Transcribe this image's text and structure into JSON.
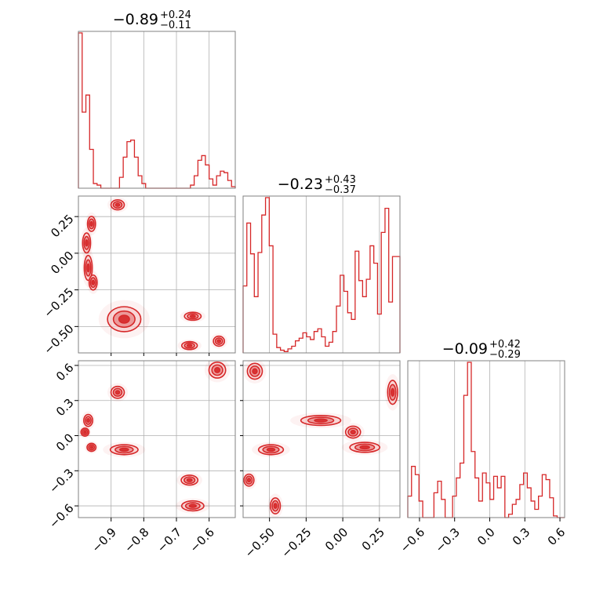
{
  "colors": {
    "accent": "#d62728",
    "frame": "#808080",
    "grid": "#b0b0b0"
  },
  "chart_data": {
    "type": "corner",
    "parameters": [
      {
        "range": [
          -1.0,
          -0.52
        ],
        "ticks": [
          -0.9,
          -0.8,
          -0.7,
          -0.6
        ],
        "tick_labels": [
          "−0.9",
          "−0.8",
          "−0.7",
          "−0.6"
        ],
        "title": {
          "median": "−0.89",
          "plus": "+0.24",
          "minus": "−0.11"
        }
      },
      {
        "range": [
          -0.68,
          0.39
        ],
        "ticks": [
          -0.5,
          -0.25,
          0.0,
          0.25
        ],
        "tick_labels": [
          "−0.50",
          "−0.25",
          "0.00",
          "0.25"
        ],
        "title": {
          "median": "−0.23",
          "plus": "+0.43",
          "minus": "−0.37"
        }
      },
      {
        "range": [
          -0.7,
          0.64
        ],
        "ticks": [
          -0.6,
          -0.3,
          0.0,
          0.3,
          0.6
        ],
        "tick_labels": [
          "−0.6",
          "−0.3",
          "0.0",
          "0.3",
          "0.6"
        ],
        "title": {
          "median": "−0.09",
          "plus": "+0.42",
          "minus": "−0.29"
        }
      }
    ],
    "histograms": [
      [
        100,
        49,
        60,
        25,
        3,
        2,
        0,
        0,
        0,
        0,
        0,
        7,
        20,
        30,
        31,
        20,
        8,
        3,
        0,
        0,
        0,
        0,
        0,
        0,
        0,
        0,
        0,
        0,
        0,
        0,
        2,
        8,
        18,
        21,
        15,
        6,
        2,
        8,
        11,
        10,
        5,
        1
      ],
      [
        50,
        97,
        74,
        42,
        75,
        103,
        116,
        80,
        14,
        4,
        2,
        1,
        3,
        5,
        9,
        11,
        15,
        12,
        10,
        16,
        18,
        12,
        5,
        8,
        16,
        35,
        58,
        46,
        30,
        25,
        76,
        54,
        42,
        55,
        80,
        67,
        29,
        90,
        108,
        38,
        72,
        72
      ],
      [
        13,
        31,
        26,
        10,
        0,
        0,
        0,
        15,
        22,
        11,
        0,
        0,
        13,
        24,
        33,
        74,
        94,
        40,
        24,
        10,
        27,
        21,
        11,
        25,
        18,
        25,
        0,
        2,
        8,
        11,
        20,
        27,
        18,
        10,
        5,
        13,
        26,
        23,
        12,
        1,
        0,
        0
      ]
    ],
    "blobs_2d": [
      [
        {
          "x": -0.88,
          "y": 0.33,
          "sx": 0.012,
          "sy": 0.02,
          "w": 1.0
        },
        {
          "x": -0.96,
          "y": 0.2,
          "sx": 0.007,
          "sy": 0.03,
          "w": 1.2
        },
        {
          "x": -0.975,
          "y": 0.07,
          "sx": 0.006,
          "sy": 0.04,
          "w": 1.0
        },
        {
          "x": -0.97,
          "y": -0.1,
          "sx": 0.006,
          "sy": 0.05,
          "w": 1.1
        },
        {
          "x": -0.955,
          "y": -0.2,
          "sx": 0.006,
          "sy": 0.03,
          "w": 0.8
        },
        {
          "x": -0.86,
          "y": -0.45,
          "sx": 0.03,
          "sy": 0.05,
          "w": 2.0
        },
        {
          "x": -0.65,
          "y": -0.43,
          "sx": 0.015,
          "sy": 0.015,
          "w": 1.3
        },
        {
          "x": -0.66,
          "y": -0.63,
          "sx": 0.014,
          "sy": 0.012,
          "w": 1.2
        },
        {
          "x": -0.57,
          "y": -0.6,
          "sx": 0.01,
          "sy": 0.02,
          "w": 1.1
        }
      ],
      [
        {
          "x": -0.88,
          "y": 0.37,
          "sx": 0.012,
          "sy": 0.03,
          "w": 1.0
        },
        {
          "x": -0.97,
          "y": 0.13,
          "sx": 0.008,
          "sy": 0.03,
          "w": 1.1
        },
        {
          "x": -0.98,
          "y": 0.03,
          "sx": 0.005,
          "sy": 0.02,
          "w": 0.8
        },
        {
          "x": -0.96,
          "y": -0.1,
          "sx": 0.008,
          "sy": 0.02,
          "w": 1.0
        },
        {
          "x": -0.86,
          "y": -0.12,
          "sx": 0.025,
          "sy": 0.025,
          "w": 1.8
        },
        {
          "x": -0.66,
          "y": -0.38,
          "sx": 0.015,
          "sy": 0.025,
          "w": 1.3
        },
        {
          "x": -0.65,
          "y": -0.6,
          "sx": 0.02,
          "sy": 0.025,
          "w": 1.2
        },
        {
          "x": -0.575,
          "y": 0.56,
          "sx": 0.015,
          "sy": 0.04,
          "w": 1.2
        }
      ],
      [
        {
          "x": -0.6,
          "y": 0.55,
          "sx": 0.03,
          "sy": 0.04,
          "w": 1.2
        },
        {
          "x": -0.64,
          "y": -0.38,
          "sx": 0.02,
          "sy": 0.03,
          "w": 1.0
        },
        {
          "x": -0.46,
          "y": -0.6,
          "sx": 0.02,
          "sy": 0.04,
          "w": 1.0
        },
        {
          "x": -0.49,
          "y": -0.12,
          "sx": 0.05,
          "sy": 0.025,
          "w": 1.8
        },
        {
          "x": -0.15,
          "y": 0.13,
          "sx": 0.08,
          "sy": 0.025,
          "w": 1.5
        },
        {
          "x": 0.07,
          "y": 0.03,
          "sx": 0.03,
          "sy": 0.03,
          "w": 1.3
        },
        {
          "x": 0.15,
          "y": -0.1,
          "sx": 0.06,
          "sy": 0.025,
          "w": 1.4
        },
        {
          "x": 0.34,
          "y": 0.37,
          "sx": 0.02,
          "sy": 0.06,
          "w": 1.2
        }
      ]
    ]
  }
}
